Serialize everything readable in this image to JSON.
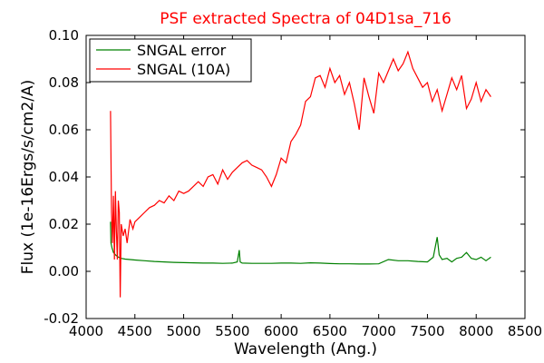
{
  "chart_data": {
    "type": "line",
    "title": "PSF extracted Spectra of 04D1sa_716",
    "title_color": "#ff0000",
    "xlabel": "Wavelength (Ang.)",
    "ylabel": "Flux (1e-16Ergs/s/cm2/A)",
    "xlim": [
      4000,
      8500
    ],
    "ylim": [
      -0.02,
      0.1
    ],
    "xticks": [
      4000,
      4500,
      5000,
      5500,
      6000,
      6500,
      7000,
      7500,
      8000,
      8500
    ],
    "yticks": [
      -0.02,
      0.0,
      0.02,
      0.04,
      0.06,
      0.08,
      0.1
    ],
    "xtick_labels": [
      "4000",
      "4500",
      "5000",
      "5500",
      "6000",
      "6500",
      "7000",
      "7500",
      "8000",
      "8500"
    ],
    "ytick_labels": [
      "-0.02",
      "0.00",
      "0.02",
      "0.04",
      "0.06",
      "0.08",
      "0.10"
    ],
    "grid": false,
    "legend_position": "top-left",
    "series": [
      {
        "name": "SNGAL error",
        "color": "#008000",
        "x": [
          4250,
          4255,
          4265,
          4280,
          4300,
          4330,
          4360,
          4400,
          4450,
          4500,
          4600,
          4700,
          4800,
          4900,
          5000,
          5100,
          5200,
          5300,
          5400,
          5500,
          5550,
          5570,
          5580,
          5600,
          5700,
          5800,
          5900,
          6000,
          6100,
          6200,
          6300,
          6400,
          6500,
          6600,
          6700,
          6800,
          6900,
          7000,
          7100,
          7200,
          7300,
          7400,
          7500,
          7560,
          7600,
          7620,
          7650,
          7700,
          7750,
          7800,
          7850,
          7900,
          7950,
          8000,
          8050,
          8100,
          8150
        ],
        "y": [
          0.021,
          0.012,
          0.01,
          0.008,
          0.007,
          0.006,
          0.0055,
          0.0052,
          0.005,
          0.0048,
          0.0045,
          0.0042,
          0.004,
          0.0038,
          0.0037,
          0.0036,
          0.0035,
          0.0035,
          0.0034,
          0.0035,
          0.004,
          0.009,
          0.004,
          0.0035,
          0.0034,
          0.0034,
          0.0034,
          0.0035,
          0.0035,
          0.0034,
          0.0036,
          0.0035,
          0.0033,
          0.0032,
          0.0032,
          0.0031,
          0.0031,
          0.0032,
          0.005,
          0.0045,
          0.0045,
          0.0042,
          0.004,
          0.006,
          0.0145,
          0.007,
          0.005,
          0.0055,
          0.004,
          0.0055,
          0.006,
          0.008,
          0.0055,
          0.005,
          0.006,
          0.0045,
          0.006
        ]
      },
      {
        "name": "SNGAL (10A)",
        "color": "#ff0000",
        "x": [
          4250,
          4260,
          4270,
          4280,
          4290,
          4300,
          4310,
          4320,
          4330,
          4340,
          4350,
          4360,
          4380,
          4400,
          4420,
          4450,
          4480,
          4500,
          4550,
          4600,
          4650,
          4700,
          4750,
          4800,
          4850,
          4900,
          4950,
          5000,
          5050,
          5100,
          5150,
          5200,
          5250,
          5300,
          5350,
          5400,
          5450,
          5500,
          5550,
          5600,
          5650,
          5700,
          5750,
          5800,
          5850,
          5900,
          5950,
          6000,
          6050,
          6100,
          6150,
          6200,
          6250,
          6300,
          6350,
          6400,
          6450,
          6500,
          6550,
          6600,
          6650,
          6700,
          6750,
          6800,
          6850,
          6900,
          6950,
          7000,
          7050,
          7100,
          7150,
          7200,
          7250,
          7300,
          7350,
          7400,
          7450,
          7500,
          7550,
          7600,
          7650,
          7700,
          7750,
          7800,
          7850,
          7900,
          7950,
          8000,
          8050,
          8100,
          8150
        ],
        "y": [
          0.068,
          0.025,
          0.012,
          0.032,
          0.005,
          0.034,
          0.018,
          0.005,
          0.03,
          0.025,
          -0.011,
          0.02,
          0.015,
          0.018,
          0.012,
          0.022,
          0.018,
          0.021,
          0.023,
          0.025,
          0.027,
          0.028,
          0.03,
          0.029,
          0.032,
          0.03,
          0.034,
          0.033,
          0.034,
          0.036,
          0.038,
          0.036,
          0.04,
          0.041,
          0.037,
          0.043,
          0.039,
          0.042,
          0.044,
          0.046,
          0.047,
          0.045,
          0.044,
          0.043,
          0.04,
          0.036,
          0.041,
          0.048,
          0.046,
          0.055,
          0.058,
          0.062,
          0.072,
          0.074,
          0.082,
          0.083,
          0.078,
          0.086,
          0.08,
          0.083,
          0.075,
          0.08,
          0.071,
          0.06,
          0.082,
          0.074,
          0.067,
          0.084,
          0.08,
          0.085,
          0.09,
          0.085,
          0.088,
          0.093,
          0.086,
          0.082,
          0.078,
          0.08,
          0.072,
          0.077,
          0.068,
          0.075,
          0.082,
          0.077,
          0.083,
          0.069,
          0.073,
          0.08,
          0.072,
          0.077,
          0.074
        ]
      }
    ]
  }
}
